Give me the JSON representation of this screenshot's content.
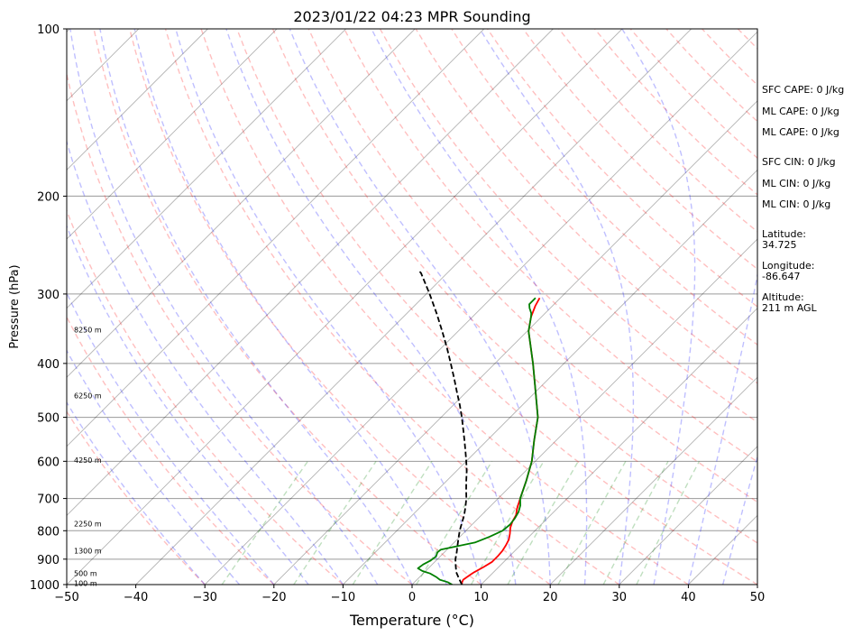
{
  "chart_data": {
    "type": "line",
    "title": "2023/01/22 04:23 MPR Sounding",
    "xlabel": "Temperature (°C)",
    "ylabel": "Pressure (hPa)",
    "xlim": [
      -50,
      50
    ],
    "ylim": [
      1000,
      100
    ],
    "y_scale": "log",
    "x_ticks": [
      "−50",
      "−40",
      "−30",
      "−20",
      "−10",
      "0",
      "10",
      "20",
      "30",
      "40",
      "50"
    ],
    "x_tick_values": [
      -50,
      -40,
      -30,
      -20,
      -10,
      0,
      10,
      20,
      30,
      40,
      50
    ],
    "y_ticks": [
      "100",
      "200",
      "300",
      "400",
      "500",
      "600",
      "700",
      "800",
      "900",
      "1000"
    ],
    "y_tick_values": [
      100,
      200,
      300,
      400,
      500,
      600,
      700,
      800,
      900,
      1000
    ],
    "grid": true,
    "height_labels": [
      {
        "text": "8250 m",
        "p": 348
      },
      {
        "text": "6250 m",
        "p": 457
      },
      {
        "text": "4250 m",
        "p": 597
      },
      {
        "text": "2250 m",
        "p": 777
      },
      {
        "text": "1300 m",
        "p": 870
      },
      {
        "text": "500 m",
        "p": 955
      },
      {
        "text": "100 m",
        "p": 995
      }
    ],
    "series": [
      {
        "color": "#ff0000",
        "points": [
          [
            7.2,
            1000
          ],
          [
            6.9,
            990
          ],
          [
            6.7,
            980
          ],
          [
            7.0,
            960
          ],
          [
            7.2,
            950
          ],
          [
            7.8,
            930
          ],
          [
            8.3,
            910
          ],
          [
            8.3,
            890
          ],
          [
            8.2,
            870
          ],
          [
            7.9,
            850
          ],
          [
            7.5,
            830
          ],
          [
            6.8,
            810
          ],
          [
            6.0,
            790
          ],
          [
            5.4,
            770
          ],
          [
            5.0,
            750
          ],
          [
            4.2,
            730
          ],
          [
            3.2,
            700
          ],
          [
            1.5,
            650
          ],
          [
            -0.5,
            600
          ],
          [
            -3.2,
            550
          ],
          [
            -6.0,
            500
          ],
          [
            -10.0,
            450
          ],
          [
            -14.5,
            400
          ],
          [
            -19.8,
            350
          ],
          [
            -21.5,
            330
          ],
          [
            -22.5,
            315
          ],
          [
            -23.0,
            305
          ]
        ]
      },
      {
        "color": "#008000",
        "points": [
          [
            5.8,
            1000
          ],
          [
            4.8,
            990
          ],
          [
            3.3,
            980
          ],
          [
            2.5,
            970
          ],
          [
            1.0,
            955
          ],
          [
            -0.5,
            945
          ],
          [
            -1.5,
            935
          ],
          [
            -1.3,
            920
          ],
          [
            -0.8,
            905
          ],
          [
            -0.6,
            890
          ],
          [
            -1.0,
            875
          ],
          [
            -0.9,
            865
          ],
          [
            3.0,
            840
          ],
          [
            4.3,
            820
          ],
          [
            5.3,
            800
          ],
          [
            5.5,
            780
          ],
          [
            5.3,
            760
          ],
          [
            4.9,
            740
          ],
          [
            4.2,
            720
          ],
          [
            3.2,
            700
          ],
          [
            1.5,
            650
          ],
          [
            -0.5,
            600
          ],
          [
            -3.2,
            550
          ],
          [
            -6.0,
            500
          ],
          [
            -10.0,
            450
          ],
          [
            -14.5,
            400
          ],
          [
            -19.8,
            350
          ],
          [
            -21.5,
            330
          ],
          [
            -22.0,
            325
          ],
          [
            -23.0,
            318
          ],
          [
            -23.6,
            313
          ],
          [
            -23.6,
            305
          ]
        ]
      },
      {
        "color": "#000000",
        "dashed": true,
        "points": [
          [
            7.2,
            1000
          ],
          [
            5.9,
            975
          ],
          [
            4.6,
            950
          ],
          [
            3.6,
            925
          ],
          [
            2.6,
            900
          ],
          [
            1.8,
            875
          ],
          [
            0.9,
            850
          ],
          [
            0.0,
            825
          ],
          [
            -0.9,
            800
          ],
          [
            -1.7,
            775
          ],
          [
            -2.5,
            750
          ],
          [
            -3.5,
            725
          ],
          [
            -4.6,
            700
          ],
          [
            -5.9,
            675
          ],
          [
            -7.2,
            650
          ],
          [
            -8.5,
            625
          ],
          [
            -10.0,
            600
          ],
          [
            -11.6,
            575
          ],
          [
            -13.3,
            550
          ],
          [
            -15.1,
            525
          ],
          [
            -17.0,
            500
          ],
          [
            -19.1,
            475
          ],
          [
            -21.4,
            450
          ],
          [
            -23.8,
            425
          ],
          [
            -26.4,
            400
          ],
          [
            -29.2,
            375
          ],
          [
            -32.3,
            350
          ],
          [
            -35.7,
            325
          ],
          [
            -39.5,
            300
          ],
          [
            -43.8,
            275
          ],
          [
            -44.3,
            273
          ]
        ]
      }
    ],
    "skew_lines": {
      "color": "#000000",
      "opacity": 0.3
    },
    "dry_adiabats": {
      "color": "#ff0000",
      "opacity": 0.25
    },
    "moist_adiabats": {
      "color": "#0000ff",
      "opacity": 0.25
    },
    "mixing_ratio_lines": {
      "color": "#008000",
      "opacity": 0.25
    }
  },
  "panel": {
    "sfc_cape": "SFC CAPE: 0 J/kg",
    "ml_cape_1": "ML CAPE: 0 J/kg",
    "ml_cape_2": "ML CAPE: 0 J/kg",
    "sfc_cin": "SFC CIN: 0 J/kg",
    "ml_cin_1": "ML CIN: 0 J/kg",
    "ml_cin_2": "ML CIN: 0 J/kg",
    "latitude_label": "Latitude:",
    "latitude_value": "34.725",
    "longitude_label": "Longitude:",
    "longitude_value": "-86.647",
    "altitude_label": "Altitude:",
    "altitude_value": "211 m AGL"
  }
}
